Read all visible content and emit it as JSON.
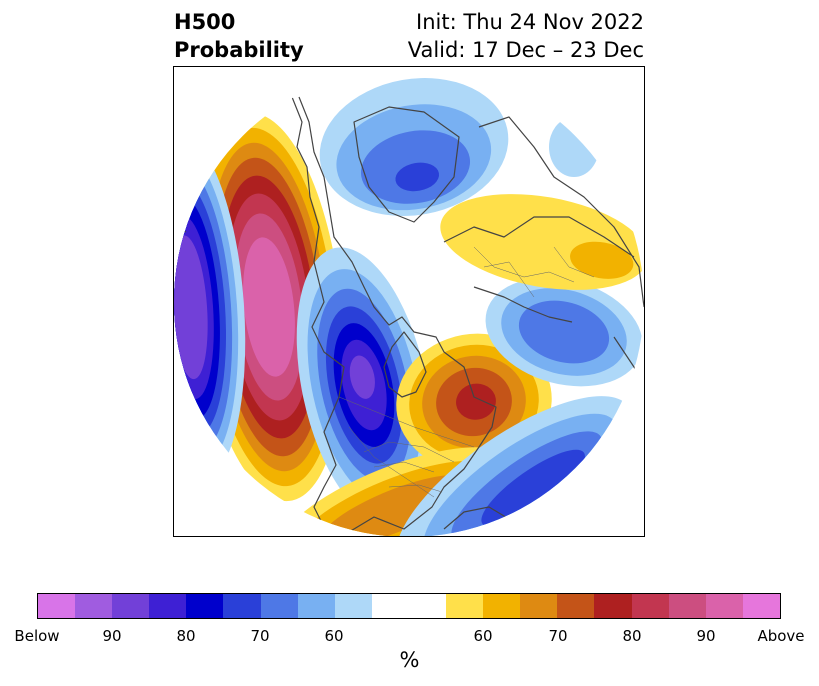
{
  "header": {
    "title_line1": "H500",
    "title_line2": "Probability",
    "init_text": "Init: Thu 24 Nov 2022",
    "valid_text": "Valid: 17 Dec – 23 Dec"
  },
  "colorbar": {
    "unit": "%",
    "colors": [
      "#d874e8",
      "#a05ce0",
      "#7240d8",
      "#3e20d4",
      "#0000cc",
      "#2a40d8",
      "#4e78e6",
      "#78b0f2",
      "#aed8f8",
      "#ffffff",
      "#ffffff",
      "#ffe04a",
      "#f2b200",
      "#de8a12",
      "#c45418",
      "#ae2020",
      "#c23650",
      "#cc4e80",
      "#da62aa",
      "#e676dc"
    ],
    "labels": [
      "Below",
      "90",
      "80",
      "70",
      "60",
      "60",
      "70",
      "80",
      "90",
      "Above"
    ]
  },
  "map": {
    "projection": "north-polar-stereographic",
    "anomalies": [
      {
        "region": "Northeast Pacific / Gulf of Alaska",
        "sign": "above",
        "peak": "Above"
      },
      {
        "region": "Central North Pacific",
        "sign": "below",
        "peak": "Below"
      },
      {
        "region": "Western Canada / Northwest US",
        "sign": "below",
        "peak": "Below"
      },
      {
        "region": "Eastern Canada / Quebec",
        "sign": "above",
        "peak": "80"
      },
      {
        "region": "Southern United States",
        "sign": "above",
        "peak": "70"
      },
      {
        "region": "Western North Atlantic",
        "sign": "below",
        "peak": "80"
      },
      {
        "region": "Northern Europe",
        "sign": "below",
        "peak": "70"
      },
      {
        "region": "Central Siberia",
        "sign": "above",
        "peak": "60"
      },
      {
        "region": "Arctic Ocean / Greenland sector",
        "sign": "below",
        "peak": "70"
      }
    ]
  }
}
